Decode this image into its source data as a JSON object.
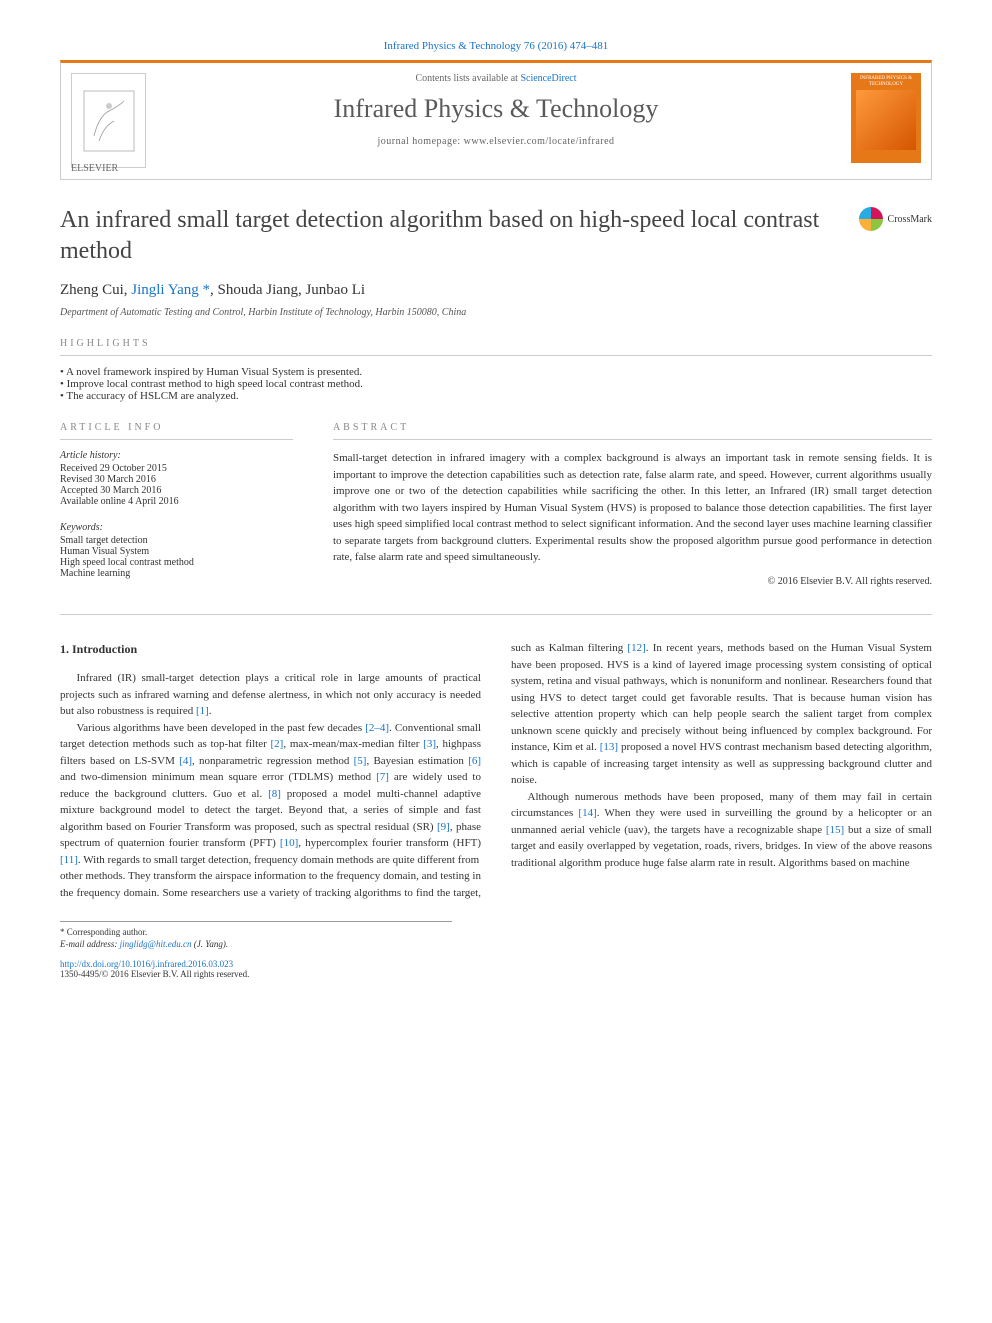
{
  "header": {
    "breadcrumb": "Infrared Physics & Technology 76 (2016) 474–481",
    "contents_prefix": "Contents lists available at ",
    "contents_link": "ScienceDirect",
    "journal_name": "Infrared Physics & Technology",
    "homepage_prefix": "journal homepage: ",
    "homepage_url": "www.elsevier.com/locate/infrared",
    "publisher": "ELSEVIER",
    "cover_title": "INFRARED PHYSICS & TECHNOLOGY"
  },
  "crossmark": {
    "label": "CrossMark"
  },
  "article": {
    "title": "An infrared small target detection algorithm based on high-speed local contrast method",
    "authors_html": [
      {
        "name": "Zheng Cui",
        "link": false
      },
      {
        "name": "Jingli Yang",
        "link": true,
        "corr": "*"
      },
      {
        "name": "Shouda Jiang",
        "link": false
      },
      {
        "name": "Junbao Li",
        "link": false
      }
    ],
    "affiliation": "Department of Automatic Testing and Control, Harbin Institute of Technology, Harbin 150080, China"
  },
  "highlights": {
    "label": "HIGHLIGHTS",
    "items": [
      "A novel framework inspired by Human Visual System is presented.",
      "Improve local contrast method to high speed local contrast method.",
      "The accuracy of HSLCM are analyzed."
    ]
  },
  "info": {
    "label": "ARTICLE INFO",
    "history_title": "Article history:",
    "history": [
      "Received 29 October 2015",
      "Revised 30 March 2016",
      "Accepted 30 March 2016",
      "Available online 4 April 2016"
    ],
    "keywords_title": "Keywords:",
    "keywords": [
      "Small target detection",
      "Human Visual System",
      "High speed local contrast method",
      "Machine learning"
    ]
  },
  "abstract": {
    "label": "ABSTRACT",
    "text": "Small-target detection in infrared imagery with a complex background is always an important task in remote sensing fields. It is important to improve the detection capabilities such as detection rate, false alarm rate, and speed. However, current algorithms usually improve one or two of the detection capabilities while sacrificing the other. In this letter, an Infrared (IR) small target detection algorithm with two layers inspired by Human Visual System (HVS) is proposed to balance those detection capabilities. The first layer uses high speed simplified local contrast method to select significant information. And the second layer uses machine learning classifier to separate targets from background clutters. Experimental results show the proposed algorithm pursue good performance in detection rate, false alarm rate and speed simultaneously.",
    "copyright": "© 2016 Elsevier B.V. All rights reserved."
  },
  "body": {
    "heading": "1. Introduction",
    "para1": "Infrared (IR) small-target detection plays a critical role in large amounts of practical projects such as infrared warning and defense alertness, in which not only accuracy is needed but also robustness is required [1].",
    "para2": "Various algorithms have been developed in the past few decades [2–4]. Conventional small target detection methods such as top-hat filter [2], max-mean/max-median filter [3], highpass filters based on LS-SVM [4], nonparametric regression method [5], Bayesian estimation [6] and two-dimension minimum mean square error (TDLMS) method [7] are widely used to reduce the background clutters. Guo et al. [8] proposed a model multi-channel adaptive mixture background model to detect the target. Beyond that, a series of simple and fast algorithm based on Fourier Transform was proposed, such as spectral residual (SR) [9], phase spectrum of quaternion fourier transform (PFT) [10], hypercomplex fourier transform (HFT) [11]. With regards to small target detection, frequency domain methods are quite different from",
    "para3": "other methods. They transform the airspace information to the frequency domain, and testing in the frequency domain. Some researchers use a variety of tracking algorithms to find the target, such as Kalman filtering [12]. In recent years, methods based on the Human Visual System have been proposed. HVS is a kind of layered image processing system consisting of optical system, retina and visual pathways, which is nonuniform and nonlinear. Researchers found that using HVS to detect target could get favorable results. That is because human vision has selective attention property which can help people search the salient target from complex unknown scene quickly and precisely without being influenced by complex background. For instance, Kim et al. [13] proposed a novel HVS contrast mechanism based detecting algorithm, which is capable of increasing target intensity as well as suppressing background clutter and noise.",
    "para4": "Although numerous methods have been proposed, many of them may fail in certain circumstances [14]. When they were used in surveilling the ground by a helicopter or an unmanned aerial vehicle (uav), the targets have a recognizable shape [15] but a size of small target and easily overlapped by vegetation, roads, rivers, bridges. In view of the above reasons traditional algorithm produce huge false alarm rate in result. Algorithms based on machine"
  },
  "footnote": {
    "corr": "* Corresponding author.",
    "email_label": "E-mail address: ",
    "email": "jinglidg@hit.edu.cn",
    "email_suffix": " (J. Yang)."
  },
  "doi": {
    "url": "http://dx.doi.org/10.1016/j.infrared.2016.03.023",
    "issn": "1350-4495/© 2016 Elsevier B.V. All rights reserved."
  },
  "colors": {
    "accent": "#e67817",
    "link": "#1a73c7",
    "text": "#333333",
    "muted": "#888888"
  }
}
